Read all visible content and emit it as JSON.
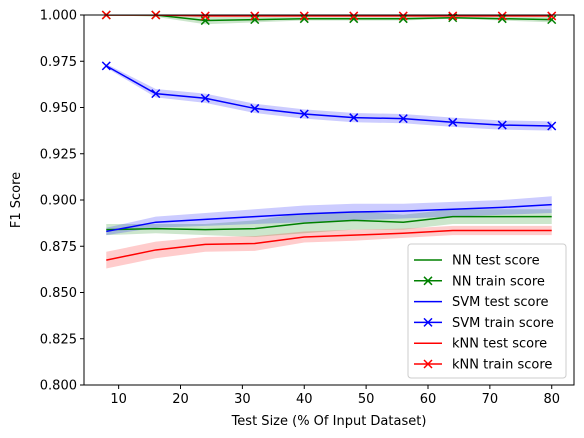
{
  "chart_data": {
    "type": "line",
    "title": "",
    "xlabel": "Test Size (% Of Input Dataset)",
    "ylabel": "F1 Score",
    "xlim": [
      4.4,
      83.6
    ],
    "ylim": [
      0.8,
      1.0
    ],
    "x": [
      8,
      16,
      24,
      32,
      40,
      48,
      56,
      64,
      72,
      80
    ],
    "x_ticks": [
      10,
      20,
      30,
      40,
      50,
      60,
      70,
      80
    ],
    "x_tick_labels": [
      "10",
      "20",
      "30",
      "40",
      "50",
      "60",
      "70",
      "80"
    ],
    "y_ticks": [
      0.8,
      0.825,
      0.85,
      0.875,
      0.9,
      0.925,
      0.95,
      0.975,
      1.0
    ],
    "y_tick_labels": [
      "0.800",
      "0.825",
      "0.850",
      "0.875",
      "0.900",
      "0.925",
      "0.950",
      "0.975",
      "1.000"
    ],
    "grid": false,
    "legend_position": "bottom-right",
    "series": [
      {
        "name": "NN test score",
        "color": "#008000",
        "marker": "none",
        "values": [
          0.884,
          0.8845,
          0.884,
          0.8845,
          0.8875,
          0.889,
          0.888,
          0.891,
          0.891,
          0.891
        ],
        "band_lower": [
          0.881,
          0.882,
          0.881,
          0.88,
          0.882,
          0.884,
          0.884,
          0.887,
          0.887,
          0.887
        ],
        "band_upper": [
          0.887,
          0.887,
          0.887,
          0.889,
          0.893,
          0.894,
          0.892,
          0.895,
          0.895,
          0.895
        ]
      },
      {
        "name": "NN train score",
        "color": "#008000",
        "marker": "x",
        "values": [
          1.0,
          1.0,
          0.997,
          0.9975,
          0.998,
          0.998,
          0.998,
          0.9985,
          0.998,
          0.9975
        ],
        "band_lower": [
          1.0,
          0.999,
          0.995,
          0.996,
          0.997,
          0.997,
          0.997,
          0.998,
          0.997,
          0.996
        ],
        "band_upper": [
          1.0,
          1.0,
          0.999,
          0.999,
          0.999,
          0.999,
          0.999,
          0.999,
          0.999,
          0.999
        ]
      },
      {
        "name": "SVM test score",
        "color": "#0000ff",
        "marker": "none",
        "values": [
          0.883,
          0.888,
          0.8895,
          0.891,
          0.8925,
          0.8935,
          0.894,
          0.895,
          0.896,
          0.8975
        ],
        "band_lower": [
          0.881,
          0.885,
          0.886,
          0.887,
          0.888,
          0.889,
          0.89,
          0.891,
          0.892,
          0.893
        ],
        "band_upper": [
          0.885,
          0.891,
          0.893,
          0.895,
          0.897,
          0.898,
          0.898,
          0.899,
          0.9,
          0.902
        ]
      },
      {
        "name": "SVM train score",
        "color": "#0000ff",
        "marker": "x",
        "values": [
          0.9725,
          0.9575,
          0.955,
          0.9495,
          0.9465,
          0.9445,
          0.944,
          0.942,
          0.9405,
          0.94
        ],
        "band_lower": [
          0.9715,
          0.9555,
          0.9525,
          0.947,
          0.944,
          0.942,
          0.9415,
          0.9395,
          0.938,
          0.9375
        ],
        "band_upper": [
          0.9735,
          0.96,
          0.9575,
          0.952,
          0.949,
          0.947,
          0.9465,
          0.9445,
          0.943,
          0.9425
        ]
      },
      {
        "name": "kNN test score",
        "color": "#ff0000",
        "marker": "none",
        "values": [
          0.8675,
          0.873,
          0.876,
          0.8765,
          0.88,
          0.881,
          0.882,
          0.8835,
          0.8835,
          0.8835
        ],
        "band_lower": [
          0.863,
          0.8685,
          0.872,
          0.8725,
          0.877,
          0.878,
          0.8795,
          0.881,
          0.881,
          0.881
        ],
        "band_upper": [
          0.872,
          0.8775,
          0.88,
          0.8805,
          0.883,
          0.884,
          0.8845,
          0.886,
          0.886,
          0.886
        ]
      },
      {
        "name": "kNN train score",
        "color": "#ff0000",
        "marker": "x",
        "values": [
          1.0,
          1.0,
          0.9995,
          0.9995,
          0.9995,
          0.9995,
          0.9995,
          0.9995,
          0.9995,
          0.9995
        ],
        "band_lower": [
          1.0,
          0.9995,
          0.999,
          0.999,
          0.999,
          0.999,
          0.999,
          0.999,
          0.999,
          0.999
        ],
        "band_upper": [
          1.0,
          1.0,
          1.0,
          1.0,
          1.0,
          1.0,
          1.0,
          1.0,
          1.0,
          1.0
        ]
      }
    ]
  }
}
